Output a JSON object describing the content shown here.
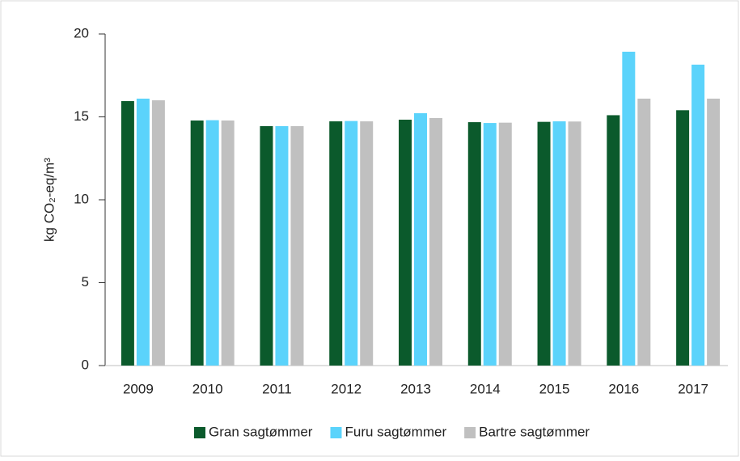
{
  "chart_data": {
    "type": "bar",
    "y_label": "kg CO₂-eq/m³",
    "categories": [
      "2009",
      "2010",
      "2011",
      "2012",
      "2013",
      "2014",
      "2015",
      "2016",
      "2017"
    ],
    "series": [
      {
        "name": "Gran sagtømmer",
        "color": "#0b5a2c",
        "values": [
          15.95,
          14.78,
          14.44,
          14.73,
          14.83,
          14.68,
          14.7,
          15.1,
          15.4
        ]
      },
      {
        "name": "Furu sagtømmer",
        "color": "#5bd3fb",
        "values": [
          16.1,
          14.8,
          14.44,
          14.75,
          15.22,
          14.63,
          14.73,
          18.93,
          18.15
        ]
      },
      {
        "name": "Bartre sagtømmer",
        "color": "#c0c0c0",
        "values": [
          16.0,
          14.78,
          14.44,
          14.73,
          14.93,
          14.65,
          14.72,
          16.1,
          16.1
        ]
      }
    ],
    "ylim": [
      0,
      20
    ],
    "yticks": [
      0,
      5,
      10,
      15,
      20
    ],
    "grid": false,
    "legend": "bottom"
  }
}
